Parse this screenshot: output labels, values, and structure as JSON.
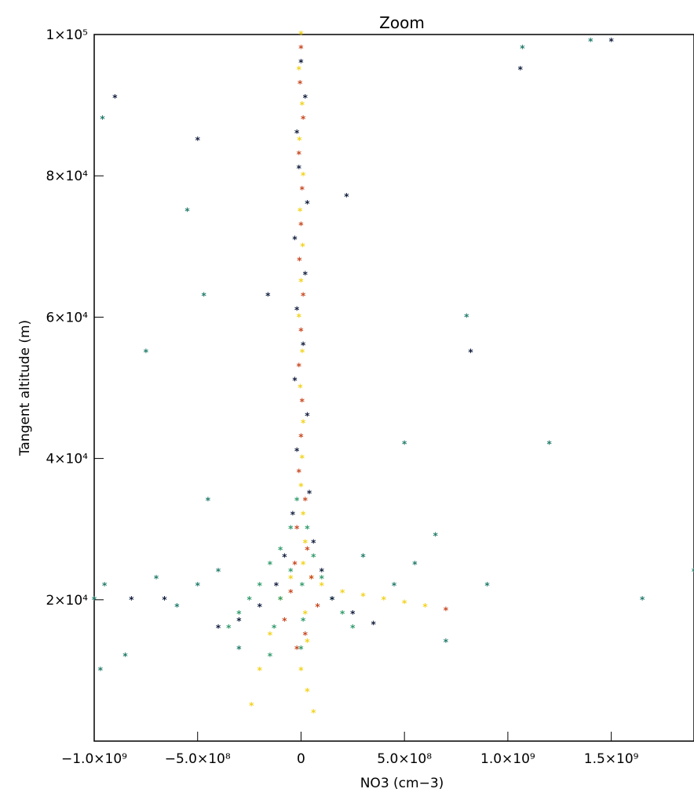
{
  "chart_data": {
    "type": "scatter",
    "title": "Zoom",
    "xlabel": "NO3 (cm−3)",
    "ylabel": "Tangent altitude (m)",
    "xlim": [
      -1000000000.0,
      1900000000.0
    ],
    "ylim": [
      0,
      100000
    ],
    "x_ticks": [
      {
        "value": -1000000000.0,
        "label": "−1.0×10⁹"
      },
      {
        "value": -500000000.0,
        "label": "−5.0×10⁸"
      },
      {
        "value": 0,
        "label": "0"
      },
      {
        "value": 500000000.0,
        "label": "5.0×10⁸"
      },
      {
        "value": 1000000000.0,
        "label": "1.0×10⁹"
      },
      {
        "value": 1500000000.0,
        "label": "1.5×10⁹"
      }
    ],
    "y_ticks": [
      {
        "value": 20000,
        "label": "2×10⁴"
      },
      {
        "value": 40000,
        "label": "4×10⁴"
      },
      {
        "value": 60000,
        "label": "6×10⁴"
      },
      {
        "value": 80000,
        "label": "8×10⁴"
      },
      {
        "value": 100000,
        "label": "1×10⁵"
      }
    ],
    "grid": false,
    "legend": "none",
    "marker": "asterisk",
    "colors": {
      "dark_navy": "#0d1a3a",
      "teal": "#1f7a6a",
      "green": "#2e9a6a",
      "orange_red": "#c8461e",
      "yellow": "#f2d21a",
      "gold": "#e8b820"
    },
    "series": [
      {
        "color": "#f2d21a",
        "points": [
          [
            0,
            100000
          ],
          [
            -10000000.0,
            95000
          ],
          [
            5000000.0,
            90000
          ],
          [
            -8000000.0,
            85000
          ],
          [
            10000000.0,
            80000
          ],
          [
            -5000000.0,
            75000
          ],
          [
            8000000.0,
            70000
          ],
          [
            0,
            65000
          ],
          [
            -10000000.0,
            60000
          ],
          [
            6000000.0,
            55000
          ],
          [
            -4000000.0,
            50000
          ],
          [
            10000000.0,
            45000
          ],
          [
            5000000.0,
            40000
          ],
          [
            0,
            36000
          ],
          [
            10000000.0,
            32000
          ],
          [
            20000000.0,
            28000
          ],
          [
            10000000.0,
            25000
          ],
          [
            50000000.0,
            23000
          ],
          [
            100000000.0,
            22000
          ],
          [
            200000000.0,
            21000
          ],
          [
            300000000.0,
            20500
          ],
          [
            400000000.0,
            20000
          ],
          [
            500000000.0,
            19500
          ],
          [
            600000000.0,
            19000
          ],
          [
            -50000000.0,
            23000
          ],
          [
            -100000000.0,
            20000
          ],
          [
            -150000000.0,
            15000
          ],
          [
            -200000000.0,
            10000
          ],
          [
            -240000000.0,
            5000
          ],
          [
            20000000.0,
            18000
          ],
          [
            30000000.0,
            14000
          ],
          [
            0,
            10000
          ],
          [
            30000000.0,
            7000
          ],
          [
            60000000.0,
            4000
          ]
        ]
      },
      {
        "color": "#c8461e",
        "points": [
          [
            0,
            98000
          ],
          [
            -5000000.0,
            93000
          ],
          [
            10000000.0,
            88000
          ],
          [
            -10000000.0,
            83000
          ],
          [
            5000000.0,
            78000
          ],
          [
            0,
            73000
          ],
          [
            -8000000.0,
            68000
          ],
          [
            10000000.0,
            63000
          ],
          [
            0,
            58000
          ],
          [
            -10000000.0,
            53000
          ],
          [
            5000000.0,
            48000
          ],
          [
            0,
            43000
          ],
          [
            -10000000.0,
            38000
          ],
          [
            20000000.0,
            34000
          ],
          [
            -20000000.0,
            30000
          ],
          [
            30000000.0,
            27000
          ],
          [
            -30000000.0,
            25000
          ],
          [
            50000000.0,
            23000
          ],
          [
            -50000000.0,
            21000
          ],
          [
            80000000.0,
            19000
          ],
          [
            -80000000.0,
            17000
          ],
          [
            20000000.0,
            15000
          ],
          [
            -20000000.0,
            13000
          ],
          [
            700000000.0,
            18500
          ]
        ]
      },
      {
        "color": "#2e9a6a",
        "points": [
          [
            -20000000.0,
            34000
          ],
          [
            -50000000.0,
            30000
          ],
          [
            -100000000.0,
            27000
          ],
          [
            -150000000.0,
            25000
          ],
          [
            -200000000.0,
            22000
          ],
          [
            -250000000.0,
            20000
          ],
          [
            -300000000.0,
            18000
          ],
          [
            -350000000.0,
            16000
          ],
          [
            -50000000.0,
            24000
          ],
          [
            -100000000.0,
            20000
          ],
          [
            -130000000.0,
            16000
          ],
          [
            -150000000.0,
            12000
          ],
          [
            30000000.0,
            30000
          ],
          [
            60000000.0,
            26000
          ],
          [
            100000000.0,
            23000
          ],
          [
            150000000.0,
            20000
          ],
          [
            200000000.0,
            18000
          ],
          [
            250000000.0,
            16000
          ],
          [
            5000000.0,
            22000
          ],
          [
            10000000.0,
            17000
          ],
          [
            0,
            13000
          ]
        ]
      },
      {
        "color": "#1f7a6a",
        "points": [
          [
            -1000000000.0,
            20000
          ],
          [
            -950000000.0,
            22000
          ],
          [
            -850000000.0,
            12000
          ],
          [
            -970000000.0,
            10000
          ],
          [
            -700000000.0,
            23000
          ],
          [
            -600000000.0,
            19000
          ],
          [
            -500000000.0,
            22000
          ],
          [
            -400000000.0,
            24000
          ],
          [
            -300000000.0,
            13000
          ],
          [
            -450000000.0,
            34000
          ],
          [
            -550000000.0,
            75000
          ],
          [
            -470000000.0,
            63000
          ],
          [
            -750000000.0,
            55000
          ],
          [
            -960000000.0,
            88000
          ],
          [
            500000000.0,
            42000
          ],
          [
            650000000.0,
            29000
          ],
          [
            800000000.0,
            60000
          ],
          [
            1200000000.0,
            42000
          ],
          [
            1650000000.0,
            20000
          ],
          [
            1900000000.0,
            24000
          ],
          [
            1400000000.0,
            99000
          ],
          [
            1070000000.0,
            98000
          ],
          [
            450000000.0,
            22000
          ],
          [
            700000000.0,
            14000
          ],
          [
            900000000.0,
            22000
          ],
          [
            550000000.0,
            25000
          ],
          [
            300000000.0,
            26000
          ]
        ]
      },
      {
        "color": "#0d1a3a",
        "points": [
          [
            0,
            96000
          ],
          [
            20000000.0,
            91000
          ],
          [
            -20000000.0,
            86000
          ],
          [
            -10000000.0,
            81000
          ],
          [
            30000000.0,
            76000
          ],
          [
            -30000000.0,
            71000
          ],
          [
            20000000.0,
            66000
          ],
          [
            -20000000.0,
            61000
          ],
          [
            10000000.0,
            56000
          ],
          [
            -30000000.0,
            51000
          ],
          [
            30000000.0,
            46000
          ],
          [
            -20000000.0,
            41000
          ],
          [
            40000000.0,
            35000
          ],
          [
            -40000000.0,
            32000
          ],
          [
            60000000.0,
            28000
          ],
          [
            -80000000.0,
            26000
          ],
          [
            100000000.0,
            24000
          ],
          [
            -120000000.0,
            22000
          ],
          [
            150000000.0,
            20000
          ],
          [
            -200000000.0,
            19000
          ],
          [
            250000000.0,
            18000
          ],
          [
            -300000000.0,
            17000
          ],
          [
            350000000.0,
            16500
          ],
          [
            -400000000.0,
            16000
          ],
          [
            -900000000.0,
            91000
          ],
          [
            -500000000.0,
            85000
          ],
          [
            220000000.0,
            77000
          ],
          [
            1500000000.0,
            99000
          ],
          [
            1060000000.0,
            95000
          ],
          [
            -160000000.0,
            63000
          ],
          [
            820000000.0,
            55000
          ],
          [
            -660000000.0,
            20000
          ],
          [
            -820000000.0,
            20000
          ]
        ]
      }
    ]
  }
}
